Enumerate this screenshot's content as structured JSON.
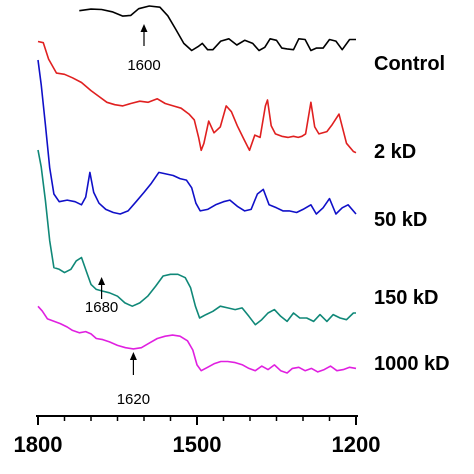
{
  "chart_data": {
    "type": "line",
    "title": "",
    "xlabel": "",
    "ylabel": "",
    "x_reversed": true,
    "xlim": [
      1800,
      1200
    ],
    "ticks": [
      "1800",
      "1500",
      "1200"
    ],
    "series": [
      {
        "name": "Control",
        "color": "#000000",
        "points": [
          [
            1722,
            0.94
          ],
          [
            1700,
            0.96
          ],
          [
            1680,
            0.955
          ],
          [
            1660,
            0.925
          ],
          [
            1640,
            0.87
          ],
          [
            1625,
            0.88
          ],
          [
            1610,
            0.965
          ],
          [
            1590,
            1.0
          ],
          [
            1570,
            0.985
          ],
          [
            1555,
            0.875
          ],
          [
            1540,
            0.7
          ],
          [
            1525,
            0.52
          ],
          [
            1510,
            0.43
          ],
          [
            1498,
            0.48
          ],
          [
            1490,
            0.52
          ],
          [
            1480,
            0.44
          ],
          [
            1470,
            0.44
          ],
          [
            1455,
            0.55
          ],
          [
            1440,
            0.58
          ],
          [
            1425,
            0.5
          ],
          [
            1410,
            0.56
          ],
          [
            1395,
            0.52
          ],
          [
            1383,
            0.43
          ],
          [
            1372,
            0.47
          ],
          [
            1362,
            0.58
          ],
          [
            1350,
            0.56
          ],
          [
            1340,
            0.46
          ],
          [
            1330,
            0.45
          ],
          [
            1318,
            0.44
          ],
          [
            1308,
            0.58
          ],
          [
            1296,
            0.57
          ],
          [
            1285,
            0.43
          ],
          [
            1275,
            0.46
          ],
          [
            1262,
            0.46
          ],
          [
            1250,
            0.57
          ],
          [
            1238,
            0.55
          ],
          [
            1226,
            0.44
          ],
          [
            1212,
            0.57
          ],
          [
            1200,
            0.57
          ]
        ]
      },
      {
        "name": "2 kD",
        "color": "#e02020",
        "points": [
          [
            1800,
            0.97
          ],
          [
            1790,
            0.96
          ],
          [
            1780,
            0.82
          ],
          [
            1765,
            0.7
          ],
          [
            1750,
            0.69
          ],
          [
            1735,
            0.66
          ],
          [
            1718,
            0.62
          ],
          [
            1700,
            0.55
          ],
          [
            1685,
            0.5
          ],
          [
            1670,
            0.45
          ],
          [
            1655,
            0.43
          ],
          [
            1640,
            0.42
          ],
          [
            1625,
            0.44
          ],
          [
            1608,
            0.46
          ],
          [
            1592,
            0.45
          ],
          [
            1575,
            0.48
          ],
          [
            1560,
            0.44
          ],
          [
            1545,
            0.42
          ],
          [
            1530,
            0.4
          ],
          [
            1515,
            0.35
          ],
          [
            1505,
            0.3
          ],
          [
            1497,
            0.15
          ],
          [
            1492,
            0.04
          ],
          [
            1487,
            0.1
          ],
          [
            1478,
            0.29
          ],
          [
            1468,
            0.19
          ],
          [
            1456,
            0.24
          ],
          [
            1445,
            0.42
          ],
          [
            1435,
            0.37
          ],
          [
            1424,
            0.25
          ],
          [
            1412,
            0.14
          ],
          [
            1401,
            0.04
          ],
          [
            1391,
            0.17
          ],
          [
            1381,
            0.15
          ],
          [
            1371,
            0.42
          ],
          [
            1367,
            0.47
          ],
          [
            1360,
            0.25
          ],
          [
            1352,
            0.18
          ],
          [
            1340,
            0.16
          ],
          [
            1328,
            0.15
          ],
          [
            1318,
            0.16
          ],
          [
            1309,
            0.15
          ],
          [
            1302,
            0.16
          ],
          [
            1295,
            0.18
          ],
          [
            1285,
            0.45
          ],
          [
            1278,
            0.24
          ],
          [
            1270,
            0.18
          ],
          [
            1255,
            0.2
          ],
          [
            1245,
            0.26
          ],
          [
            1232,
            0.35
          ],
          [
            1218,
            0.1
          ],
          [
            1205,
            0.03
          ],
          [
            1200,
            0.02
          ]
        ]
      },
      {
        "name": "50 kD",
        "color": "#1010c8",
        "points": [
          [
            1800,
            1.0
          ],
          [
            1794,
            0.84
          ],
          [
            1786,
            0.58
          ],
          [
            1778,
            0.3
          ],
          [
            1770,
            0.13
          ],
          [
            1760,
            0.08
          ],
          [
            1745,
            0.09
          ],
          [
            1730,
            0.08
          ],
          [
            1718,
            0.06
          ],
          [
            1710,
            0.11
          ],
          [
            1702,
            0.27
          ],
          [
            1695,
            0.14
          ],
          [
            1685,
            0.07
          ],
          [
            1672,
            0.03
          ],
          [
            1658,
            0.01
          ],
          [
            1645,
            0.0
          ],
          [
            1630,
            0.02
          ],
          [
            1615,
            0.08
          ],
          [
            1600,
            0.14
          ],
          [
            1586,
            0.2
          ],
          [
            1572,
            0.27
          ],
          [
            1558,
            0.26
          ],
          [
            1545,
            0.25
          ],
          [
            1532,
            0.23
          ],
          [
            1520,
            0.22
          ],
          [
            1510,
            0.17
          ],
          [
            1502,
            0.07
          ],
          [
            1494,
            0.02
          ],
          [
            1480,
            0.03
          ],
          [
            1465,
            0.06
          ],
          [
            1450,
            0.08
          ],
          [
            1438,
            0.09
          ],
          [
            1424,
            0.05
          ],
          [
            1410,
            0.02
          ],
          [
            1398,
            0.03
          ],
          [
            1386,
            0.13
          ],
          [
            1375,
            0.16
          ],
          [
            1364,
            0.06
          ],
          [
            1350,
            0.04
          ],
          [
            1338,
            0.02
          ],
          [
            1326,
            0.02
          ],
          [
            1312,
            0.01
          ],
          [
            1300,
            0.03
          ],
          [
            1285,
            0.06
          ],
          [
            1275,
            0.0
          ],
          [
            1262,
            0.04
          ],
          [
            1250,
            0.1
          ],
          [
            1238,
            0.0
          ],
          [
            1226,
            0.04
          ],
          [
            1215,
            0.06
          ],
          [
            1200,
            0.0
          ]
        ]
      },
      {
        "name": "150 kD",
        "color": "#108878",
        "points": [
          [
            1800,
            1.0
          ],
          [
            1794,
            0.9
          ],
          [
            1786,
            0.7
          ],
          [
            1778,
            0.46
          ],
          [
            1770,
            0.3
          ],
          [
            1760,
            0.29
          ],
          [
            1750,
            0.27
          ],
          [
            1738,
            0.29
          ],
          [
            1728,
            0.34
          ],
          [
            1718,
            0.36
          ],
          [
            1708,
            0.27
          ],
          [
            1700,
            0.2
          ],
          [
            1690,
            0.17
          ],
          [
            1678,
            0.16
          ],
          [
            1665,
            0.15
          ],
          [
            1650,
            0.13
          ],
          [
            1636,
            0.09
          ],
          [
            1622,
            0.07
          ],
          [
            1608,
            0.09
          ],
          [
            1593,
            0.13
          ],
          [
            1578,
            0.19
          ],
          [
            1564,
            0.25
          ],
          [
            1550,
            0.26
          ],
          [
            1536,
            0.26
          ],
          [
            1522,
            0.24
          ],
          [
            1512,
            0.18
          ],
          [
            1503,
            0.07
          ],
          [
            1495,
            0.0
          ],
          [
            1483,
            0.02
          ],
          [
            1470,
            0.04
          ],
          [
            1456,
            0.07
          ],
          [
            1442,
            0.06
          ],
          [
            1428,
            0.05
          ],
          [
            1415,
            0.06
          ],
          [
            1402,
            0.01
          ],
          [
            1390,
            -0.04
          ],
          [
            1378,
            -0.01
          ],
          [
            1366,
            0.03
          ],
          [
            1354,
            0.05
          ],
          [
            1342,
            0.01
          ],
          [
            1330,
            -0.02
          ],
          [
            1318,
            0.03
          ],
          [
            1306,
            0.0
          ],
          [
            1293,
            0.0
          ],
          [
            1280,
            -0.02
          ],
          [
            1268,
            0.02
          ],
          [
            1255,
            -0.02
          ],
          [
            1243,
            0.02
          ],
          [
            1230,
            0.0
          ],
          [
            1218,
            -0.01
          ],
          [
            1205,
            0.03
          ],
          [
            1200,
            0.03
          ]
        ]
      },
      {
        "name": "1000 kD",
        "color": "#e020e0",
        "points": [
          [
            1800,
            0.58
          ],
          [
            1792,
            0.54
          ],
          [
            1782,
            0.47
          ],
          [
            1770,
            0.45
          ],
          [
            1758,
            0.43
          ],
          [
            1745,
            0.4
          ],
          [
            1735,
            0.37
          ],
          [
            1722,
            0.35
          ],
          [
            1710,
            0.36
          ],
          [
            1700,
            0.34
          ],
          [
            1690,
            0.3
          ],
          [
            1678,
            0.29
          ],
          [
            1665,
            0.27
          ],
          [
            1650,
            0.24
          ],
          [
            1635,
            0.22
          ],
          [
            1620,
            0.21
          ],
          [
            1605,
            0.22
          ],
          [
            1590,
            0.26
          ],
          [
            1575,
            0.3
          ],
          [
            1560,
            0.32
          ],
          [
            1546,
            0.33
          ],
          [
            1532,
            0.32
          ],
          [
            1518,
            0.28
          ],
          [
            1508,
            0.2
          ],
          [
            1500,
            0.07
          ],
          [
            1492,
            0.02
          ],
          [
            1480,
            0.05
          ],
          [
            1468,
            0.08
          ],
          [
            1455,
            0.1
          ],
          [
            1442,
            0.1
          ],
          [
            1428,
            0.09
          ],
          [
            1414,
            0.07
          ],
          [
            1402,
            0.04
          ],
          [
            1390,
            0.02
          ],
          [
            1378,
            0.06
          ],
          [
            1366,
            0.03
          ],
          [
            1354,
            0.07
          ],
          [
            1342,
            0.02
          ],
          [
            1330,
            0.0
          ],
          [
            1320,
            0.04
          ],
          [
            1308,
            0.05
          ],
          [
            1296,
            0.02
          ],
          [
            1284,
            0.04
          ],
          [
            1272,
            0.01
          ],
          [
            1260,
            0.03
          ],
          [
            1248,
            0.06
          ],
          [
            1236,
            0.02
          ],
          [
            1224,
            0.03
          ],
          [
            1212,
            0.05
          ],
          [
            1200,
            0.04
          ]
        ]
      }
    ],
    "annotations": [
      {
        "text": "1600",
        "x": 1600
      },
      {
        "text": "1680",
        "x": 1680
      },
      {
        "text": "1620",
        "x": 1620
      }
    ]
  }
}
